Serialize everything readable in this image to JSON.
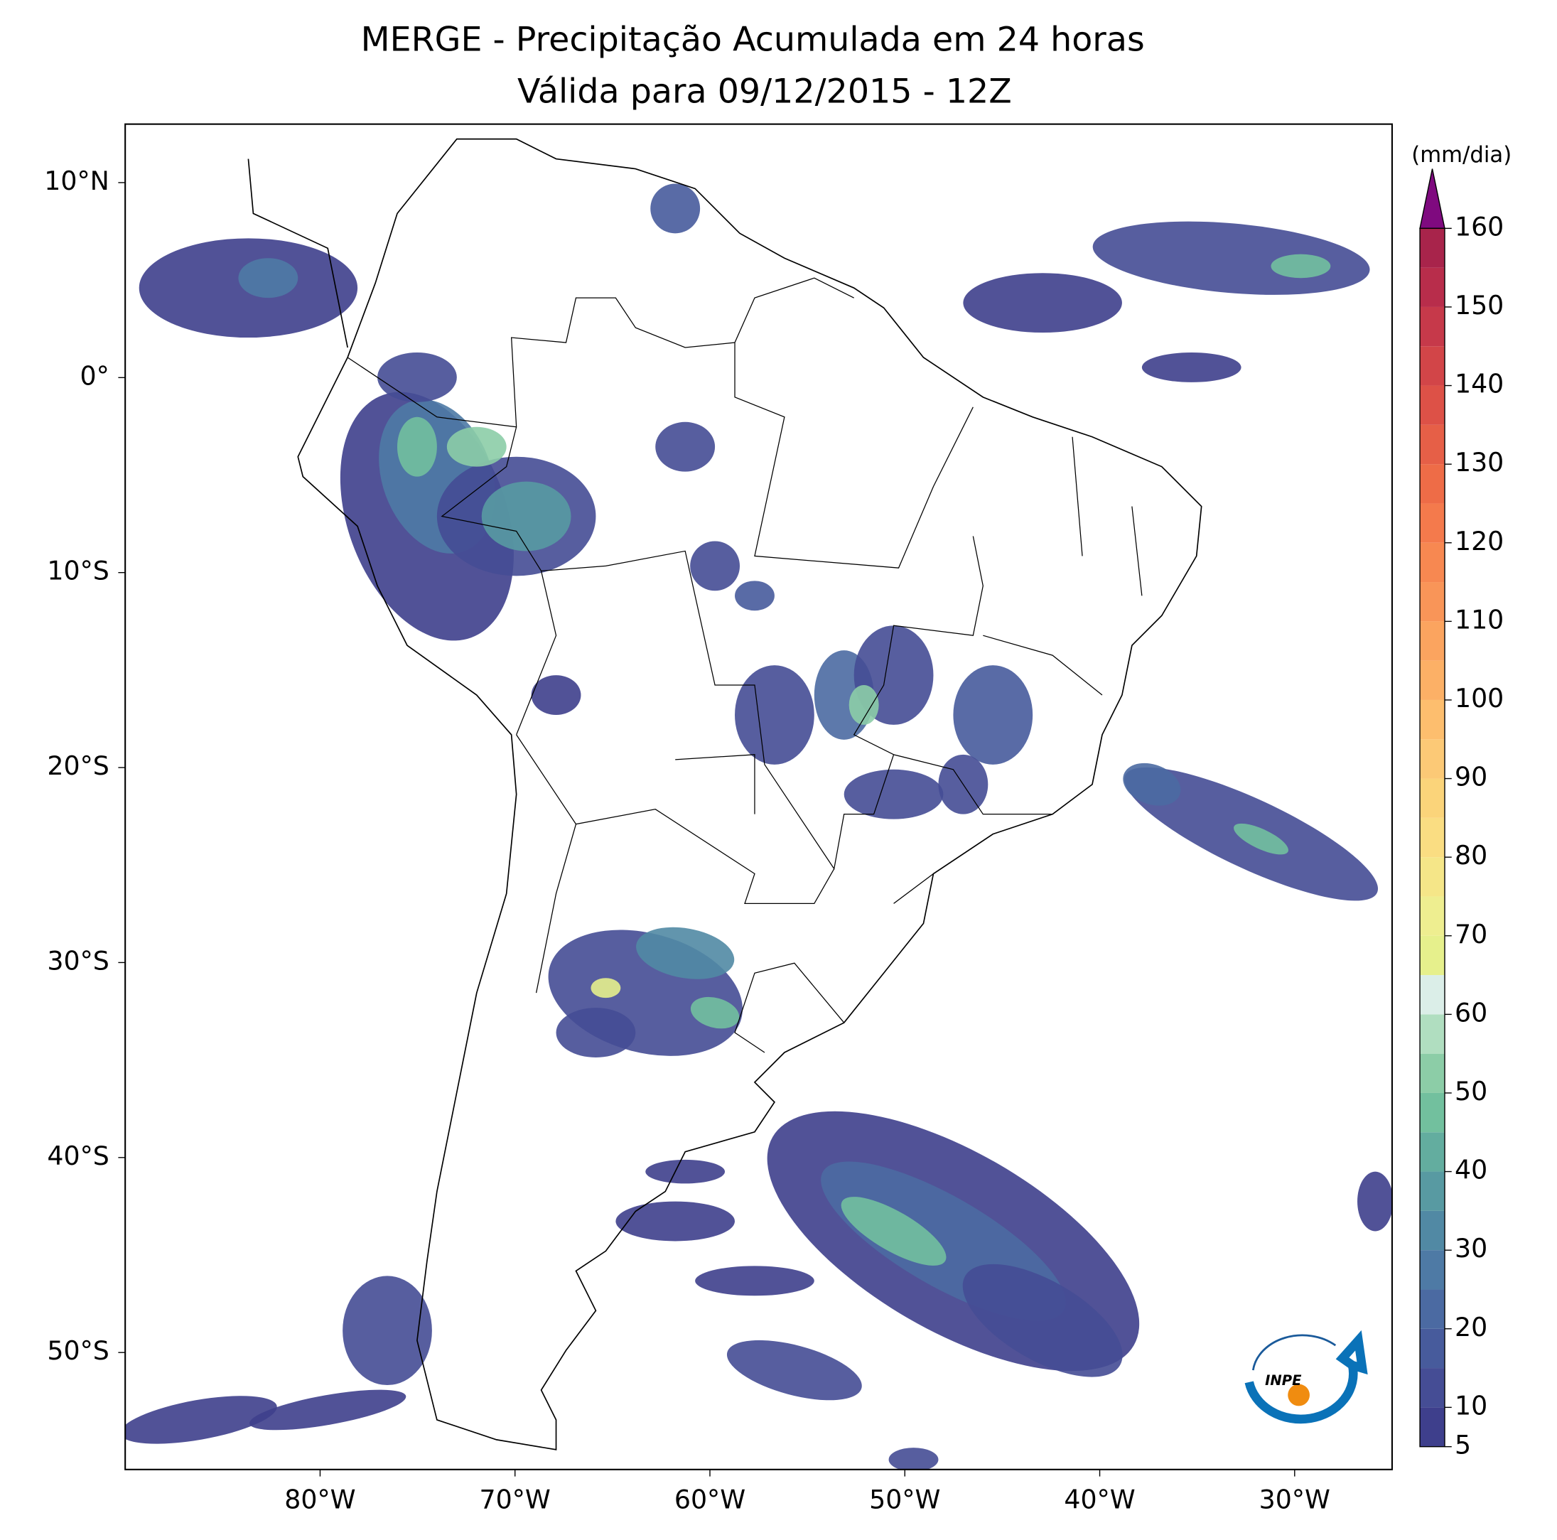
{
  "chart_data": {
    "type": "map",
    "title": "MERGE - Precipitação Acumulada em 24 horas",
    "subtitle": "Válida para 09/12/2015 - 12Z",
    "xlim": [
      -90,
      -25
    ],
    "ylim": [
      -56,
      13
    ],
    "xticks": [
      {
        "value": -80,
        "label": "80°W"
      },
      {
        "value": -70,
        "label": "70°W"
      },
      {
        "value": -60,
        "label": "60°W"
      },
      {
        "value": -50,
        "label": "50°W"
      },
      {
        "value": -40,
        "label": "40°W"
      },
      {
        "value": -30,
        "label": "30°W"
      }
    ],
    "yticks": [
      {
        "value": 10,
        "label": "10°N"
      },
      {
        "value": 0,
        "label": "0°"
      },
      {
        "value": -10,
        "label": "10°S"
      },
      {
        "value": -20,
        "label": "20°S"
      },
      {
        "value": -30,
        "label": "30°S"
      },
      {
        "value": -40,
        "label": "40°S"
      },
      {
        "value": -50,
        "label": "50°S"
      }
    ],
    "colorbar": {
      "label": "(mm/dia)",
      "levels": [
        5,
        10,
        15,
        20,
        25,
        30,
        35,
        40,
        45,
        50,
        55,
        60,
        65,
        70,
        75,
        80,
        85,
        90,
        95,
        100,
        105,
        110,
        115,
        120,
        125,
        130,
        135,
        140,
        145,
        150,
        155,
        160
      ],
      "colors": [
        "#3e3f8c",
        "#454d95",
        "#475b9c",
        "#4b6aa2",
        "#4e7aa5",
        "#5189a4",
        "#589aa2",
        "#63ad9f",
        "#72c09e",
        "#8ccda7",
        "#b0dec0",
        "#dbeee8",
        "#e6f08c",
        "#eeee90",
        "#f5e688",
        "#fadd82",
        "#fbd47a",
        "#fcc976",
        "#fdbe6e",
        "#fcb066",
        "#fba45f",
        "#f99558",
        "#f78851",
        "#f47a4c",
        "#ee6c47",
        "#e65f47",
        "#dd5147",
        "#d24548",
        "#c6394a",
        "#b82d4b",
        "#a8244b"
      ],
      "extend_color": "#7f0a7f",
      "ticks": [
        5,
        10,
        20,
        30,
        40,
        50,
        60,
        70,
        80,
        90,
        100,
        110,
        120,
        130,
        140,
        150,
        160
      ]
    },
    "logo_text": "INPE"
  }
}
